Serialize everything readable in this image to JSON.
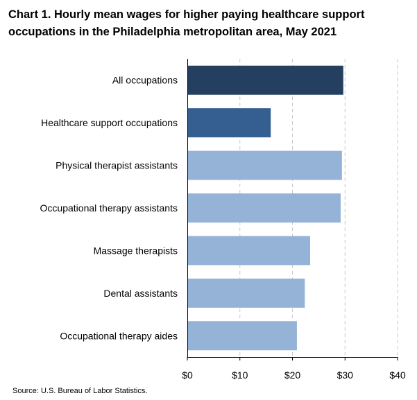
{
  "chart_data": {
    "type": "bar",
    "orientation": "horizontal",
    "title": "Chart 1. Hourly mean wages for higher paying healthcare support occupations in the Philadelphia metropolitan area, May 2021",
    "categories": [
      "All occupations",
      "Healthcare support occupations",
      "Physical therapist assistants",
      "Occupational therapy assistants",
      "Massage therapists",
      "Dental assistants",
      "Occupational therapy aides"
    ],
    "values": [
      29.67,
      15.87,
      29.42,
      29.17,
      23.37,
      22.35,
      20.85
    ],
    "bar_colors": [
      "#253f60",
      "#365f91",
      "#95b3d7",
      "#95b3d7",
      "#95b3d7",
      "#95b3d7",
      "#95b3d7"
    ],
    "x_ticks": [
      0,
      10,
      20,
      30,
      40
    ],
    "x_tick_labels": [
      "$0",
      "$10",
      "$20",
      "$30",
      "$40"
    ],
    "xlim": [
      0,
      40
    ],
    "grid": "vertical dashed",
    "xlabel": "",
    "ylabel": ""
  },
  "source": "Source: U.S. Bureau of Labor Statistics."
}
